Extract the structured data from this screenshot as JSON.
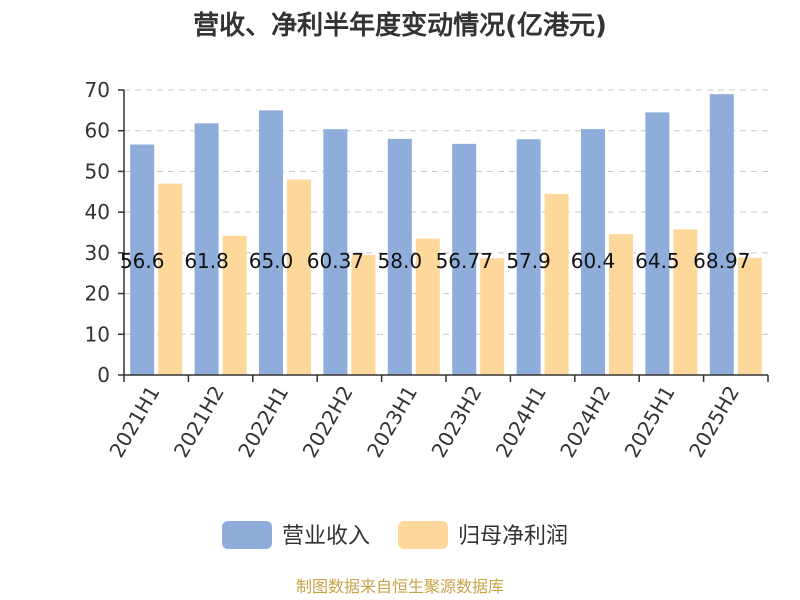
{
  "chart_data": {
    "type": "bar",
    "title": "营收、净利半年度变动情况(亿港元)",
    "categories": [
      "2021H1",
      "2021H2",
      "2022H1",
      "2022H2",
      "2023H1",
      "2023H2",
      "2024H1",
      "2024H2",
      "2025H1",
      "2025H2"
    ],
    "series": [
      {
        "name": "营业收入",
        "color": "#8eaddb",
        "values": [
          56.6,
          61.8,
          65.0,
          60.37,
          58.0,
          56.77,
          57.9,
          60.4,
          64.5,
          68.97
        ],
        "labels": [
          "56.6",
          "61.8",
          "65.0",
          "60.37",
          "58.0",
          "56.77",
          "57.9",
          "60.4",
          "64.5",
          "68.97"
        ]
      },
      {
        "name": "归母净利润",
        "color": "#fed89b",
        "values": [
          47,
          34.2,
          48,
          29.5,
          33.5,
          28.7,
          44.5,
          34.6,
          35.8,
          28.8
        ]
      }
    ],
    "yticks": [
      0,
      10,
      20,
      30,
      40,
      50,
      60,
      70
    ],
    "ylim": [
      0,
      70
    ],
    "grid": true,
    "legend": "bottom"
  },
  "source": "制图数据来自恒生聚源数据库"
}
